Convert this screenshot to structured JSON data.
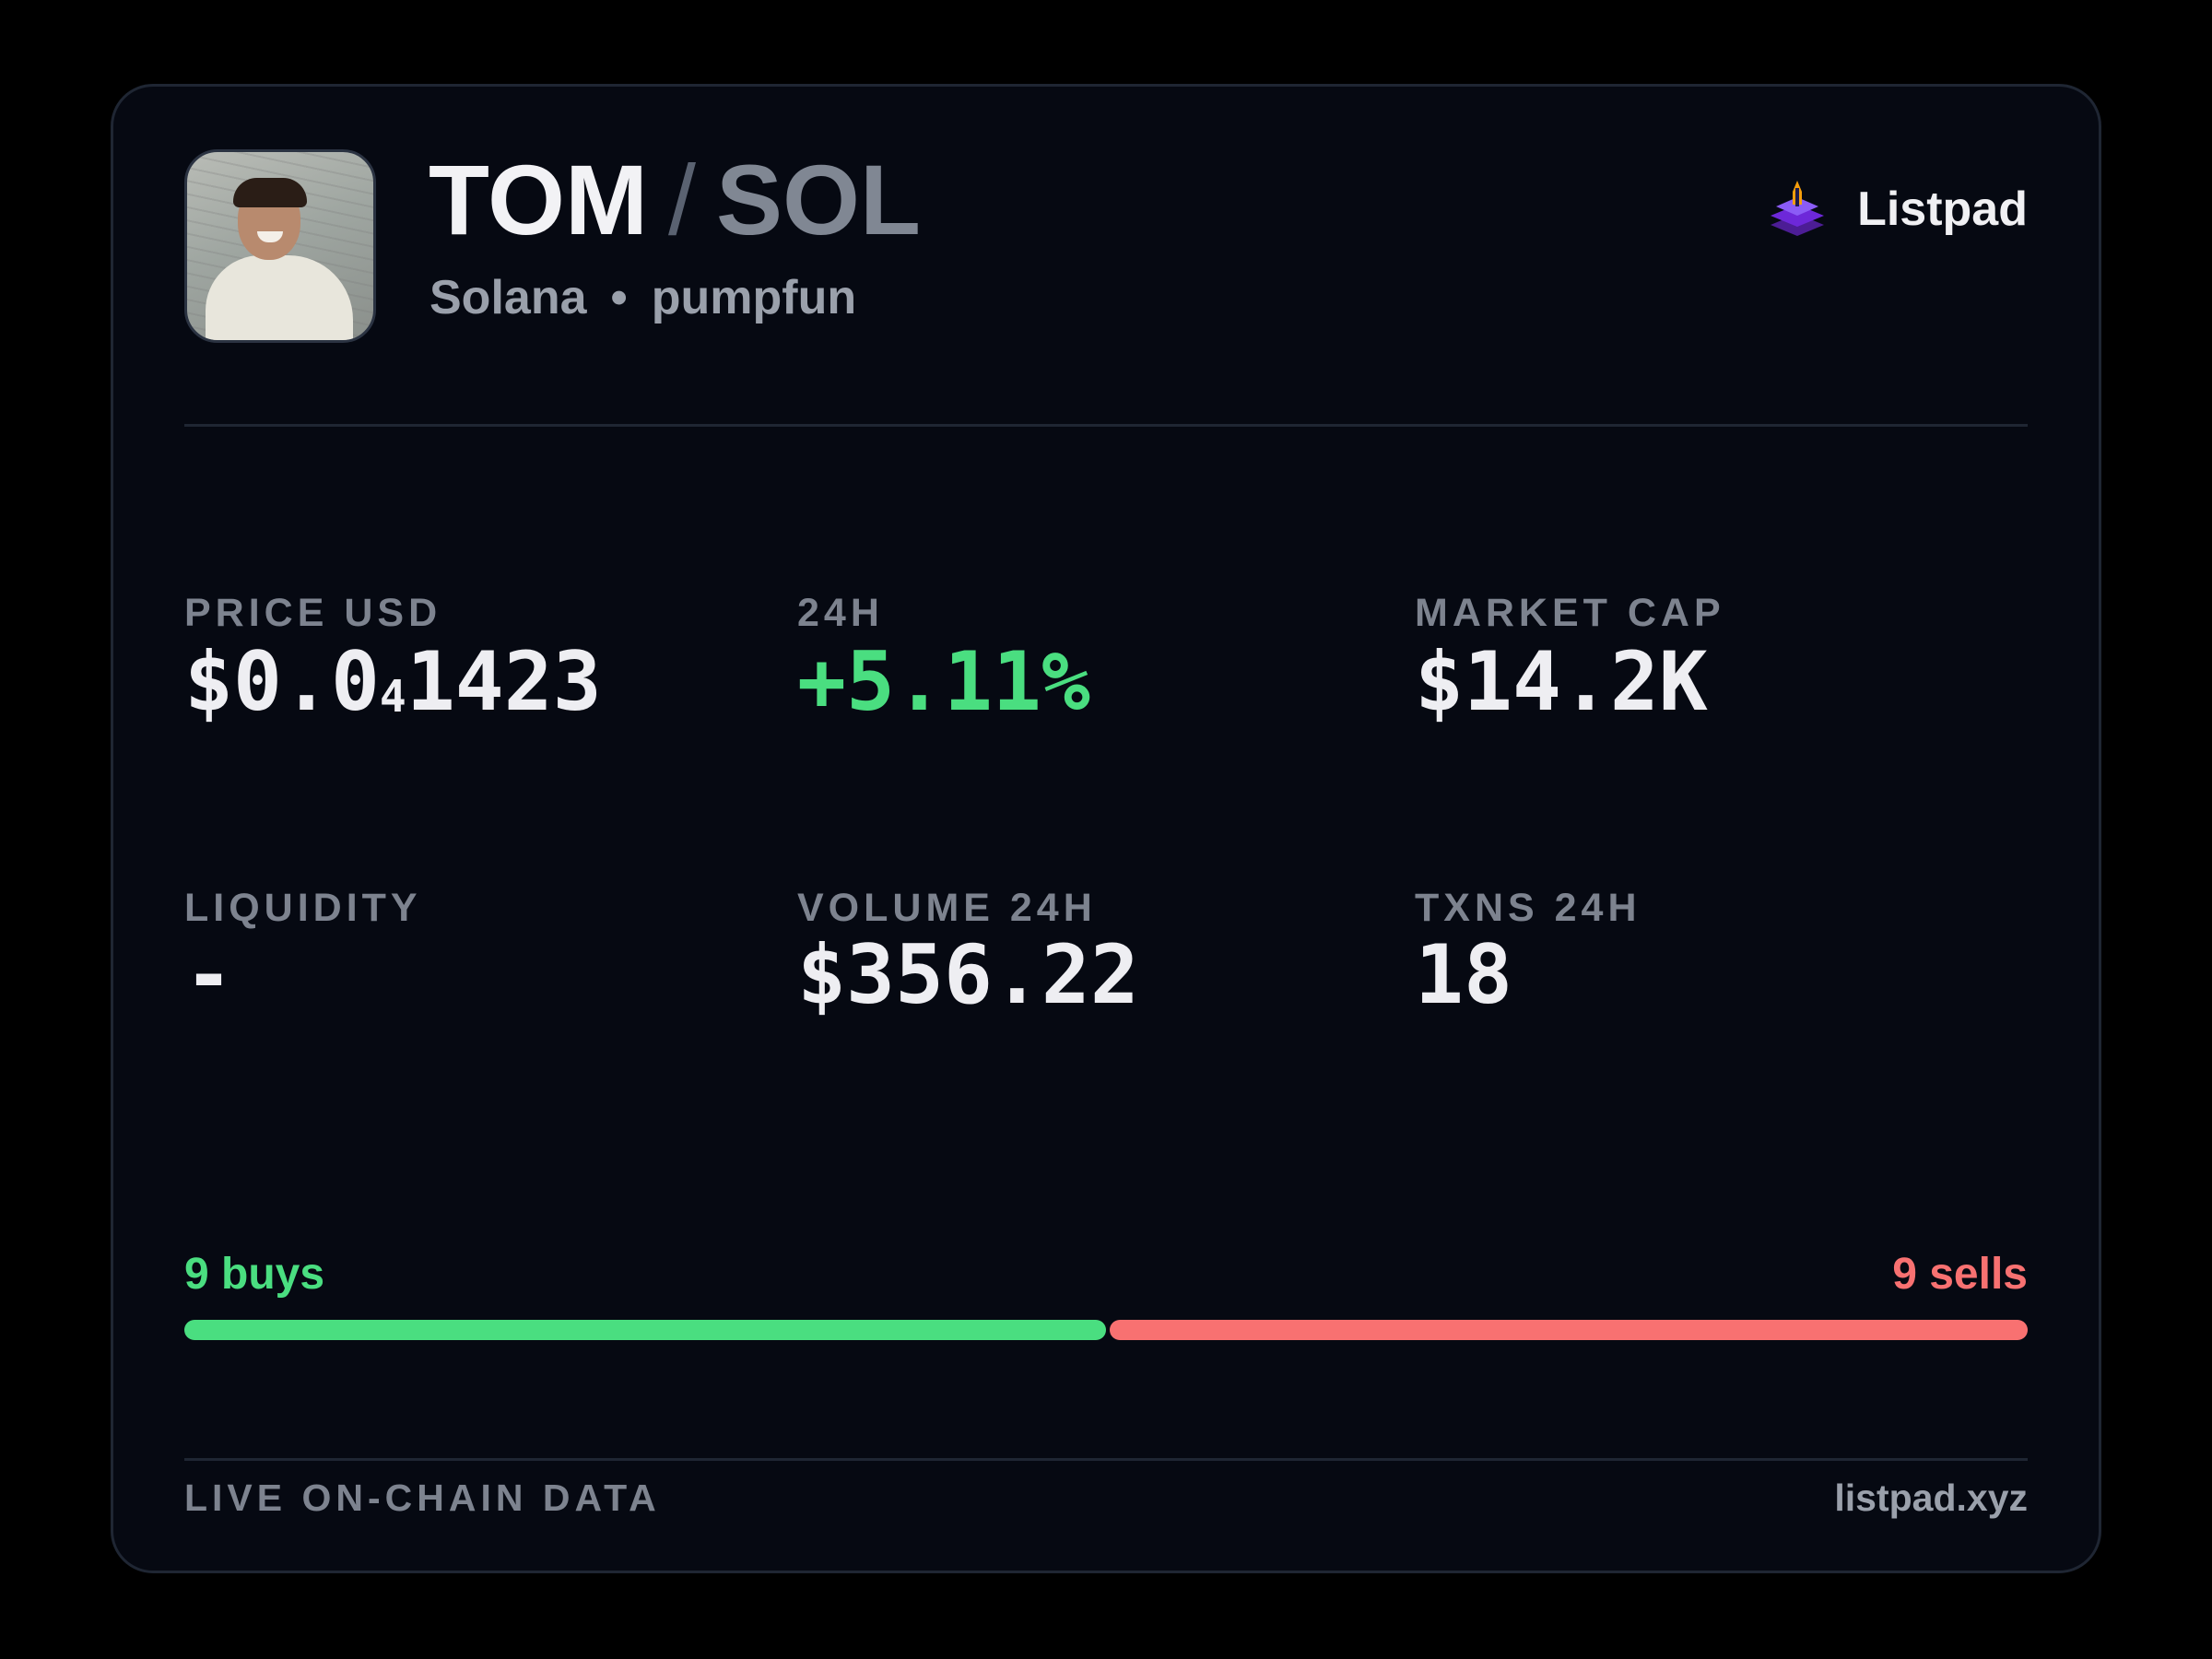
{
  "token": {
    "base_symbol": "TOM",
    "separator": "/",
    "quote_symbol": "SOL",
    "chain": "Solana",
    "dot": "•",
    "dex": "pumpfun",
    "avatar_icon": "token-avatar-photo"
  },
  "brand": {
    "label": "Listpad",
    "icon": "listpad-logo-icon",
    "colors": {
      "layers": "#6d28d9",
      "rocket": "#f59e0b"
    }
  },
  "stats": {
    "price": {
      "label": "PRICE USD",
      "prefix": "$0.0",
      "zeros": "4",
      "digits": "1423"
    },
    "change_24h": {
      "label": "24H",
      "value": "+5.11%"
    },
    "market_cap": {
      "label": "MARKET CAP",
      "value": "$14.2K"
    },
    "liquidity": {
      "label": "LIQUIDITY",
      "value": "-"
    },
    "volume_24h": {
      "label": "VOLUME 24H",
      "value": "$356.22"
    },
    "txns_24h": {
      "label": "TXNS 24H",
      "value": "18"
    }
  },
  "trades": {
    "buys_label": "9 buys",
    "sells_label": "9 sells",
    "buys": 9,
    "sells": 9,
    "buy_fraction": 0.5
  },
  "footer": {
    "left": "LIVE ON-CHAIN DATA",
    "right": "listpad.xyz"
  },
  "colors": {
    "background": "#000000",
    "card": "#060912",
    "positive": "#4ade80",
    "negative": "#f87171",
    "muted": "#7d838f"
  }
}
